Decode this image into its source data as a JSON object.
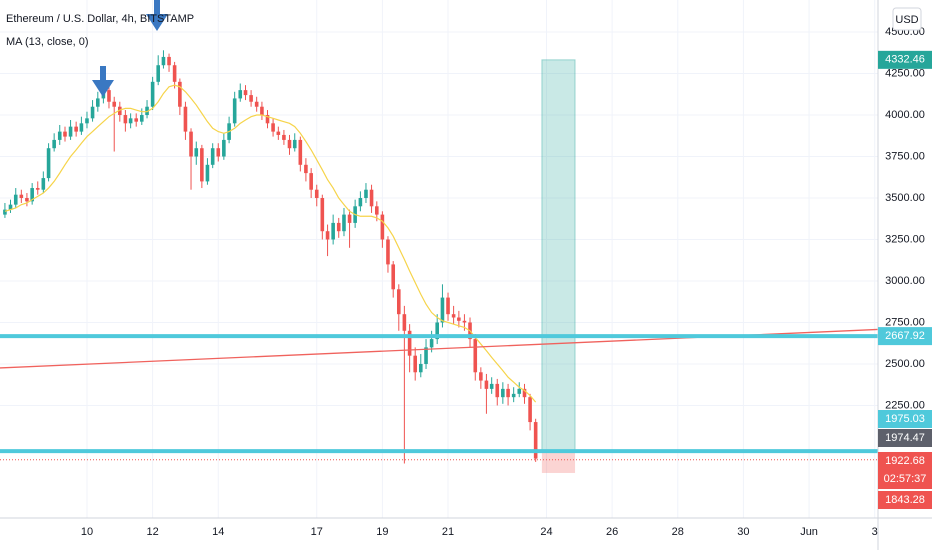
{
  "chart_data": {
    "type": "candlestick",
    "title": "Ethereum / U.S. Dollar, 4h, BITSTAMP",
    "currency": "USD",
    "grid": true,
    "xlim": [
      7.35,
      34.1
    ],
    "ylim": [
      1572,
      4693
    ],
    "xticks": [
      10,
      12,
      14,
      17,
      19,
      21,
      24,
      26,
      28,
      30,
      {
        "value": 32,
        "label": "Jun"
      },
      {
        "value": 34,
        "label": "3"
      }
    ],
    "yticks": [
      {
        "value": 2250,
        "label": "2250.00"
      },
      {
        "value": 2500,
        "label": "2500.00"
      },
      {
        "value": 2750,
        "label": "2750.00"
      },
      {
        "value": 3000,
        "label": "3000.00"
      },
      {
        "value": 3250,
        "label": "3250.00"
      },
      {
        "value": 3500,
        "label": "3500.00"
      },
      {
        "value": 3750,
        "label": "3750.00"
      },
      {
        "value": 4000,
        "label": "4000.00"
      },
      {
        "value": 4250,
        "label": "4250.00"
      },
      {
        "value": 4500,
        "label": "4500.00"
      }
    ],
    "x": [
      7.5,
      7.67,
      7.83,
      8,
      8.17,
      8.33,
      8.5,
      8.67,
      8.83,
      9,
      9.17,
      9.33,
      9.5,
      9.67,
      9.83,
      10,
      10.17,
      10.33,
      10.5,
      10.67,
      10.83,
      11,
      11.17,
      11.33,
      11.5,
      11.67,
      11.83,
      12,
      12.17,
      12.33,
      12.5,
      12.67,
      12.83,
      13,
      13.17,
      13.33,
      13.5,
      13.67,
      13.83,
      14,
      14.17,
      14.33,
      14.5,
      14.67,
      14.83,
      15,
      15.17,
      15.33,
      15.5,
      15.67,
      15.83,
      16,
      16.17,
      16.33,
      16.5,
      16.67,
      16.83,
      17,
      17.17,
      17.33,
      17.5,
      17.67,
      17.83,
      18,
      18.17,
      18.33,
      18.5,
      18.67,
      18.83,
      19,
      19.17,
      19.33,
      19.5,
      19.67,
      19.83,
      20,
      20.17,
      20.33,
      20.5,
      20.67,
      20.83,
      21,
      21.17,
      21.33,
      21.5,
      21.67,
      21.83,
      22,
      22.17,
      22.33,
      22.5,
      22.67,
      22.83,
      23,
      23.17,
      23.33,
      23.5,
      23.67
    ],
    "candles": {
      "up_color": "#26a69a",
      "down_color": "#ef5350",
      "open": [
        3400,
        3430,
        3460,
        3520,
        3500,
        3480,
        3560,
        3550,
        3620,
        3800,
        3850,
        3900,
        3870,
        3930,
        3900,
        3950,
        3980,
        4050,
        4100,
        4150,
        4080,
        4050,
        4000,
        3950,
        3980,
        3960,
        4000,
        4050,
        4200,
        4300,
        4350,
        4300,
        4200,
        4050,
        3900,
        3750,
        3800,
        3600,
        3700,
        3800,
        3750,
        3850,
        3950,
        4100,
        4150,
        4120,
        4080,
        4050,
        4000,
        3950,
        3900,
        3880,
        3850,
        3800,
        3850,
        3700,
        3650,
        3550,
        3500,
        3300,
        3250,
        3350,
        3300,
        3400,
        3350,
        3450,
        3500,
        3550,
        3450,
        3400,
        3250,
        3100,
        2950,
        2800,
        2700,
        2550,
        2450,
        2500,
        2600,
        2650,
        2750,
        2900,
        2800,
        2780,
        2760,
        2750,
        2650,
        2450,
        2400,
        2350,
        2380,
        2300,
        2350,
        2300,
        2320,
        2350,
        2300,
        2150
      ],
      "high": [
        3470,
        3490,
        3560,
        3550,
        3530,
        3590,
        3600,
        3660,
        3830,
        3890,
        3940,
        3930,
        3970,
        3960,
        3990,
        4020,
        4090,
        4140,
        4200,
        4180,
        4110,
        4080,
        4030,
        4010,
        4010,
        4040,
        4090,
        4230,
        4360,
        4390,
        4370,
        4320,
        4220,
        4080,
        3920,
        3840,
        3820,
        3740,
        3830,
        3830,
        3890,
        3990,
        4140,
        4190,
        4180,
        4150,
        4110,
        4080,
        4030,
        3980,
        3930,
        3910,
        3880,
        3890,
        3870,
        3740,
        3680,
        3580,
        3520,
        3340,
        3400,
        3380,
        3440,
        3430,
        3490,
        3540,
        3590,
        3580,
        3480,
        3420,
        3270,
        3120,
        2980,
        2850,
        2740,
        2600,
        2560,
        2650,
        2700,
        2800,
        2980,
        2930,
        2850,
        2820,
        2800,
        2780,
        2680,
        2480,
        2440,
        2420,
        2410,
        2390,
        2380,
        2360,
        2390,
        2380,
        2320,
        2170
      ],
      "low": [
        3380,
        3410,
        3440,
        3470,
        3450,
        3460,
        3520,
        3530,
        3600,
        3780,
        3820,
        3840,
        3850,
        3870,
        3880,
        3920,
        3960,
        4020,
        4070,
        4040,
        3780,
        3960,
        3900,
        3920,
        3930,
        3940,
        3980,
        4030,
        4180,
        4280,
        4260,
        4160,
        4000,
        3850,
        3550,
        3700,
        3560,
        3580,
        3680,
        3720,
        3730,
        3830,
        3930,
        4080,
        4090,
        4050,
        4020,
        3970,
        3920,
        3870,
        3850,
        3820,
        3760,
        3780,
        3660,
        3600,
        3500,
        3450,
        3250,
        3150,
        3220,
        3260,
        3270,
        3200,
        3320,
        3420,
        3470,
        3410,
        3360,
        3200,
        3050,
        2900,
        2700,
        1900,
        2450,
        2400,
        2420,
        2470,
        2570,
        2620,
        2720,
        2760,
        2740,
        2720,
        2700,
        2600,
        2400,
        2350,
        2200,
        2320,
        2250,
        2260,
        2250,
        2270,
        2300,
        2260,
        2100,
        1910
      ],
      "close": [
        3430,
        3460,
        3520,
        3500,
        3480,
        3560,
        3550,
        3620,
        3800,
        3850,
        3900,
        3870,
        3930,
        3900,
        3950,
        3980,
        4050,
        4100,
        4150,
        4080,
        4050,
        4000,
        3950,
        3980,
        3960,
        4000,
        4050,
        4200,
        4300,
        4350,
        4300,
        4200,
        4050,
        3900,
        3750,
        3800,
        3600,
        3700,
        3800,
        3750,
        3850,
        3950,
        4100,
        4150,
        4120,
        4080,
        4050,
        4000,
        3950,
        3900,
        3880,
        3850,
        3800,
        3850,
        3700,
        3650,
        3550,
        3500,
        3300,
        3250,
        3350,
        3300,
        3400,
        3350,
        3450,
        3500,
        3550,
        3450,
        3400,
        3250,
        3100,
        2950,
        2800,
        2700,
        2550,
        2450,
        2500,
        2600,
        2650,
        2750,
        2900,
        2800,
        2780,
        2760,
        2750,
        2650,
        2450,
        2400,
        2350,
        2380,
        2300,
        2350,
        2300,
        2320,
        2350,
        2300,
        2150,
        1930
      ]
    },
    "indicator": {
      "name": "MA (13, close, 0)",
      "color": "#f6d44a",
      "values": [
        3420,
        3430,
        3440,
        3460,
        3470,
        3490,
        3510,
        3530,
        3560,
        3600,
        3650,
        3700,
        3750,
        3790,
        3830,
        3870,
        3900,
        3930,
        3960,
        3990,
        4010,
        4030,
        4040,
        4040,
        4030,
        4020,
        4020,
        4040,
        4080,
        4130,
        4170,
        4180,
        4170,
        4140,
        4100,
        4060,
        4010,
        3960,
        3920,
        3900,
        3890,
        3900,
        3920,
        3950,
        3970,
        3990,
        4000,
        4000,
        3990,
        3980,
        3970,
        3960,
        3950,
        3930,
        3890,
        3840,
        3790,
        3730,
        3670,
        3610,
        3560,
        3500,
        3460,
        3420,
        3400,
        3390,
        3390,
        3390,
        3380,
        3360,
        3320,
        3270,
        3200,
        3130,
        3060,
        2990,
        2920,
        2860,
        2810,
        2780,
        2760,
        2750,
        2740,
        2730,
        2720,
        2700,
        2660,
        2620,
        2580,
        2540,
        2500,
        2460,
        2420,
        2390,
        2360,
        2340,
        2310,
        2270
      ]
    },
    "trend_line": {
      "color": "#f0625d",
      "x": [
        7.35,
        34.1
      ],
      "values": [
        2476,
        2708
      ]
    },
    "horizontal_lines": [
      {
        "value": 2667.92,
        "color": "#4fc9db"
      },
      {
        "value": 1975.03,
        "color": "#4fc9db"
      }
    ],
    "position": {
      "x": [
        23.86,
        24.87
      ],
      "target": 4332.46,
      "entry": 1974.47,
      "stop": 1843.28,
      "profit_color": "#26a69a",
      "loss_color": "#ef5350",
      "entry_color": "#5d606b"
    },
    "last_price": {
      "value": 1922.68,
      "countdown": "02:57:37",
      "color": "#ef5350"
    }
  }
}
